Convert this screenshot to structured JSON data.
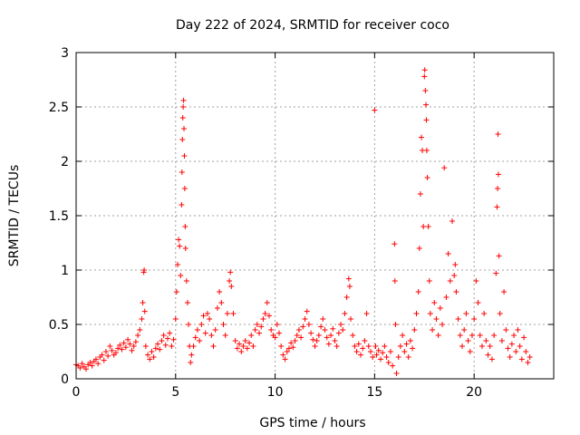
{
  "chart_data": {
    "type": "scatter",
    "title": "Day 222 of 2024, SRMTID for receiver coco",
    "xlabel": "GPS time / hours",
    "ylabel": "SRMTID / TECUs",
    "xlim": [
      0,
      24
    ],
    "ylim": [
      0,
      3
    ],
    "xticks": [
      0,
      5,
      10,
      15,
      20
    ],
    "yticks": [
      0,
      0.5,
      1,
      1.5,
      2,
      2.5,
      3
    ],
    "xtick_labels": [
      "0",
      "5",
      "10",
      "15",
      "20"
    ],
    "ytick_labels": [
      "0",
      "0.5",
      "1",
      "1.5",
      "2",
      "2.5",
      "3"
    ],
    "grid": true,
    "marker": "+",
    "series": [
      {
        "name": "SRMTID",
        "color": "#ff0000",
        "points": [
          [
            0.0,
            0.13
          ],
          [
            0.1,
            0.12
          ],
          [
            0.2,
            0.1
          ],
          [
            0.3,
            0.14
          ],
          [
            0.4,
            0.11
          ],
          [
            0.5,
            0.09
          ],
          [
            0.6,
            0.13
          ],
          [
            0.7,
            0.15
          ],
          [
            0.8,
            0.12
          ],
          [
            0.9,
            0.16
          ],
          [
            1.0,
            0.18
          ],
          [
            1.1,
            0.14
          ],
          [
            1.2,
            0.2
          ],
          [
            1.3,
            0.22
          ],
          [
            1.4,
            0.17
          ],
          [
            1.5,
            0.25
          ],
          [
            1.6,
            0.21
          ],
          [
            1.7,
            0.3
          ],
          [
            1.8,
            0.26
          ],
          [
            1.9,
            0.22
          ],
          [
            2.0,
            0.24
          ],
          [
            2.1,
            0.28
          ],
          [
            2.2,
            0.31
          ],
          [
            2.3,
            0.27
          ],
          [
            2.4,
            0.33
          ],
          [
            2.5,
            0.29
          ],
          [
            2.6,
            0.36
          ],
          [
            2.7,
            0.32
          ],
          [
            2.8,
            0.26
          ],
          [
            2.9,
            0.3
          ],
          [
            3.0,
            0.34
          ],
          [
            3.1,
            0.4
          ],
          [
            3.2,
            0.45
          ],
          [
            3.3,
            0.55
          ],
          [
            3.35,
            0.7
          ],
          [
            3.4,
            0.98
          ],
          [
            3.42,
            1.0
          ],
          [
            3.45,
            0.62
          ],
          [
            3.5,
            0.3
          ],
          [
            3.6,
            0.22
          ],
          [
            3.7,
            0.18
          ],
          [
            3.8,
            0.25
          ],
          [
            3.9,
            0.2
          ],
          [
            4.0,
            0.28
          ],
          [
            4.1,
            0.32
          ],
          [
            4.2,
            0.27
          ],
          [
            4.3,
            0.35
          ],
          [
            4.4,
            0.4
          ],
          [
            4.5,
            0.31
          ],
          [
            4.6,
            0.37
          ],
          [
            4.7,
            0.42
          ],
          [
            4.8,
            0.3
          ],
          [
            4.9,
            0.36
          ],
          [
            5.0,
            0.55
          ],
          [
            5.05,
            0.8
          ],
          [
            5.1,
            1.05
          ],
          [
            5.15,
            1.28
          ],
          [
            5.2,
            1.22
          ],
          [
            5.25,
            0.95
          ],
          [
            5.3,
            1.6
          ],
          [
            5.32,
            1.9
          ],
          [
            5.34,
            2.2
          ],
          [
            5.36,
            2.4
          ],
          [
            5.38,
            2.5
          ],
          [
            5.4,
            2.56
          ],
          [
            5.42,
            2.3
          ],
          [
            5.44,
            2.05
          ],
          [
            5.46,
            1.75
          ],
          [
            5.48,
            1.4
          ],
          [
            5.5,
            1.2
          ],
          [
            5.55,
            0.9
          ],
          [
            5.6,
            0.7
          ],
          [
            5.65,
            0.5
          ],
          [
            5.7,
            0.3
          ],
          [
            5.75,
            0.15
          ],
          [
            5.8,
            0.22
          ],
          [
            5.9,
            0.3
          ],
          [
            6.0,
            0.38
          ],
          [
            6.1,
            0.45
          ],
          [
            6.2,
            0.35
          ],
          [
            6.3,
            0.5
          ],
          [
            6.4,
            0.58
          ],
          [
            6.5,
            0.42
          ],
          [
            6.6,
            0.6
          ],
          [
            6.7,
            0.55
          ],
          [
            6.8,
            0.4
          ],
          [
            6.9,
            0.3
          ],
          [
            7.0,
            0.45
          ],
          [
            7.1,
            0.65
          ],
          [
            7.2,
            0.8
          ],
          [
            7.3,
            0.7
          ],
          [
            7.4,
            0.5
          ],
          [
            7.5,
            0.4
          ],
          [
            7.6,
            0.6
          ],
          [
            7.7,
            0.9
          ],
          [
            7.75,
            0.98
          ],
          [
            7.8,
            0.85
          ],
          [
            7.9,
            0.6
          ],
          [
            8.0,
            0.35
          ],
          [
            8.1,
            0.28
          ],
          [
            8.2,
            0.32
          ],
          [
            8.3,
            0.25
          ],
          [
            8.4,
            0.3
          ],
          [
            8.5,
            0.35
          ],
          [
            8.6,
            0.28
          ],
          [
            8.7,
            0.33
          ],
          [
            8.8,
            0.4
          ],
          [
            8.9,
            0.3
          ],
          [
            9.0,
            0.45
          ],
          [
            9.1,
            0.5
          ],
          [
            9.2,
            0.42
          ],
          [
            9.3,
            0.48
          ],
          [
            9.4,
            0.55
          ],
          [
            9.5,
            0.6
          ],
          [
            9.6,
            0.7
          ],
          [
            9.7,
            0.58
          ],
          [
            9.8,
            0.45
          ],
          [
            9.9,
            0.4
          ],
          [
            10.0,
            0.38
          ],
          [
            10.1,
            0.5
          ],
          [
            10.2,
            0.42
          ],
          [
            10.3,
            0.3
          ],
          [
            10.4,
            0.22
          ],
          [
            10.5,
            0.18
          ],
          [
            10.6,
            0.25
          ],
          [
            10.7,
            0.28
          ],
          [
            10.8,
            0.33
          ],
          [
            10.9,
            0.29
          ],
          [
            11.0,
            0.35
          ],
          [
            11.1,
            0.4
          ],
          [
            11.2,
            0.45
          ],
          [
            11.3,
            0.38
          ],
          [
            11.4,
            0.48
          ],
          [
            11.5,
            0.55
          ],
          [
            11.6,
            0.62
          ],
          [
            11.7,
            0.5
          ],
          [
            11.8,
            0.42
          ],
          [
            11.9,
            0.36
          ],
          [
            12.0,
            0.3
          ],
          [
            12.1,
            0.35
          ],
          [
            12.2,
            0.4
          ],
          [
            12.3,
            0.48
          ],
          [
            12.4,
            0.55
          ],
          [
            12.5,
            0.45
          ],
          [
            12.6,
            0.38
          ],
          [
            12.7,
            0.32
          ],
          [
            12.8,
            0.4
          ],
          [
            12.9,
            0.46
          ],
          [
            13.0,
            0.35
          ],
          [
            13.1,
            0.3
          ],
          [
            13.2,
            0.42
          ],
          [
            13.3,
            0.5
          ],
          [
            13.4,
            0.45
          ],
          [
            13.5,
            0.6
          ],
          [
            13.6,
            0.75
          ],
          [
            13.7,
            0.92
          ],
          [
            13.75,
            0.85
          ],
          [
            13.8,
            0.55
          ],
          [
            13.9,
            0.4
          ],
          [
            14.0,
            0.3
          ],
          [
            14.1,
            0.25
          ],
          [
            14.2,
            0.32
          ],
          [
            14.3,
            0.22
          ],
          [
            14.4,
            0.28
          ],
          [
            14.5,
            0.35
          ],
          [
            14.6,
            0.6
          ],
          [
            14.7,
            0.3
          ],
          [
            14.8,
            0.25
          ],
          [
            14.9,
            0.2
          ],
          [
            15.0,
            2.47
          ],
          [
            15.05,
            0.3
          ],
          [
            15.1,
            0.22
          ],
          [
            15.2,
            0.26
          ],
          [
            15.3,
            0.18
          ],
          [
            15.4,
            0.24
          ],
          [
            15.5,
            0.3
          ],
          [
            15.6,
            0.2
          ],
          [
            15.7,
            0.15
          ],
          [
            15.8,
            0.25
          ],
          [
            15.9,
            0.12
          ],
          [
            16.0,
            1.24
          ],
          [
            16.02,
            0.9
          ],
          [
            16.05,
            0.5
          ],
          [
            16.1,
            0.05
          ],
          [
            16.2,
            0.2
          ],
          [
            16.3,
            0.3
          ],
          [
            16.4,
            0.4
          ],
          [
            16.5,
            0.25
          ],
          [
            16.6,
            0.32
          ],
          [
            16.7,
            0.2
          ],
          [
            16.8,
            0.35
          ],
          [
            16.9,
            0.28
          ],
          [
            17.0,
            0.45
          ],
          [
            17.1,
            0.6
          ],
          [
            17.2,
            0.8
          ],
          [
            17.25,
            1.2
          ],
          [
            17.3,
            1.7
          ],
          [
            17.35,
            2.22
          ],
          [
            17.4,
            2.1
          ],
          [
            17.45,
            1.4
          ],
          [
            17.5,
            2.78
          ],
          [
            17.52,
            2.84
          ],
          [
            17.55,
            2.65
          ],
          [
            17.58,
            2.52
          ],
          [
            17.6,
            2.38
          ],
          [
            17.62,
            2.1
          ],
          [
            17.65,
            1.85
          ],
          [
            17.7,
            1.4
          ],
          [
            17.75,
            0.9
          ],
          [
            17.8,
            0.6
          ],
          [
            17.9,
            0.45
          ],
          [
            18.0,
            0.7
          ],
          [
            18.1,
            0.55
          ],
          [
            18.2,
            0.4
          ],
          [
            18.3,
            0.65
          ],
          [
            18.4,
            0.5
          ],
          [
            18.5,
            1.94
          ],
          [
            18.6,
            0.75
          ],
          [
            18.7,
            1.15
          ],
          [
            18.8,
            0.9
          ],
          [
            18.9,
            1.45
          ],
          [
            19.0,
            0.95
          ],
          [
            19.05,
            1.05
          ],
          [
            19.1,
            0.8
          ],
          [
            19.2,
            0.55
          ],
          [
            19.3,
            0.4
          ],
          [
            19.4,
            0.3
          ],
          [
            19.5,
            0.45
          ],
          [
            19.6,
            0.6
          ],
          [
            19.7,
            0.35
          ],
          [
            19.8,
            0.25
          ],
          [
            19.9,
            0.4
          ],
          [
            20.0,
            0.55
          ],
          [
            20.1,
            0.9
          ],
          [
            20.2,
            0.7
          ],
          [
            20.3,
            0.4
          ],
          [
            20.4,
            0.3
          ],
          [
            20.5,
            0.6
          ],
          [
            20.6,
            0.35
          ],
          [
            20.7,
            0.22
          ],
          [
            20.8,
            0.3
          ],
          [
            20.9,
            0.18
          ],
          [
            21.0,
            0.4
          ],
          [
            21.1,
            0.97
          ],
          [
            21.15,
            1.58
          ],
          [
            21.18,
            1.75
          ],
          [
            21.2,
            2.25
          ],
          [
            21.22,
            1.88
          ],
          [
            21.25,
            1.13
          ],
          [
            21.3,
            0.6
          ],
          [
            21.4,
            0.35
          ],
          [
            21.5,
            0.8
          ],
          [
            21.6,
            0.45
          ],
          [
            21.7,
            0.28
          ],
          [
            21.8,
            0.2
          ],
          [
            21.9,
            0.32
          ],
          [
            22.0,
            0.4
          ],
          [
            22.1,
            0.25
          ],
          [
            22.2,
            0.45
          ],
          [
            22.3,
            0.3
          ],
          [
            22.4,
            0.18
          ],
          [
            22.5,
            0.38
          ],
          [
            22.6,
            0.25
          ],
          [
            22.7,
            0.15
          ],
          [
            22.8,
            0.2
          ]
        ]
      }
    ]
  }
}
